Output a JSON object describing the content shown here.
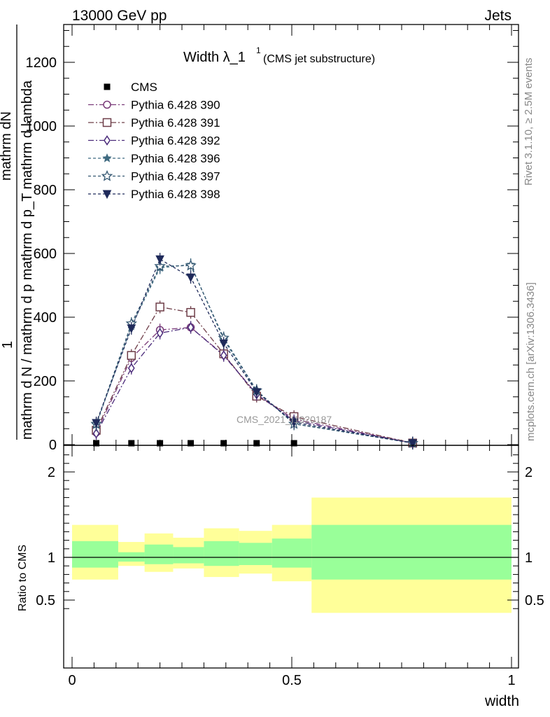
{
  "header": {
    "left": "13000 GeV pp",
    "right": "Jets"
  },
  "side_text": {
    "rivet": "Rivet 3.1.10, ≥ 2.5M events",
    "mcplots": "mcplots.cern.ch [arXiv:1306.3436]"
  },
  "watermark": "CMS_2021_I1920187",
  "colors": {
    "p390": "#7a3b79",
    "p391": "#6e3d48",
    "p392": "#4a2a7a",
    "p396": "#3f6a80",
    "p397": "#355872",
    "p398": "#1f2a5a",
    "band_green": "#99ff99",
    "band_yellow": "#ffff99"
  },
  "chart_data": [
    {
      "type": "line",
      "title": "Width λ_1",
      "title_sup": "1",
      "title_note": "(CMS jet substructure)",
      "ylabel_numerator": "mathrm dN",
      "ylabel_lines": [
        "1",
        "mathrm d N / mathrm d p mathrm d p_T mathrm d lambda"
      ],
      "xlim": [
        0,
        1
      ],
      "ylim": [
        0,
        1320
      ],
      "y_ticks": [
        0,
        200,
        400,
        600,
        800,
        1000,
        1200
      ],
      "y_tick_labels": [
        "0",
        "200",
        "400",
        "600",
        "800",
        "1000",
        "1200"
      ],
      "legend_position": "top-left",
      "data_series": {
        "name": "CMS",
        "x": [
          0.055,
          0.135,
          0.2,
          0.27,
          0.345,
          0.42,
          0.505
        ],
        "y": [
          0,
          0,
          0,
          0,
          0,
          0,
          0
        ]
      },
      "series": [
        {
          "name": "Pythia 6.428 390",
          "marker": "circle",
          "dash": "8,3,2,3",
          "color_key": "p390",
          "x": [
            0.055,
            0.135,
            0.2,
            0.27,
            0.345,
            0.42,
            0.505,
            0.775
          ],
          "y": [
            38,
            272,
            360,
            368,
            282,
            158,
            80,
            5
          ]
        },
        {
          "name": "Pythia 6.428 391",
          "marker": "square",
          "dash": "8,3,2,3",
          "color_key": "p391",
          "x": [
            0.055,
            0.135,
            0.2,
            0.27,
            0.345,
            0.42,
            0.505,
            0.775
          ],
          "y": [
            45,
            280,
            432,
            415,
            285,
            152,
            88,
            5
          ]
        },
        {
          "name": "Pythia 6.428 392",
          "marker": "diamond",
          "dash": "8,3,2,3",
          "color_key": "p392",
          "x": [
            0.055,
            0.135,
            0.2,
            0.27,
            0.345,
            0.42,
            0.505,
            0.775
          ],
          "y": [
            35,
            240,
            350,
            368,
            280,
            158,
            75,
            5
          ]
        },
        {
          "name": "Pythia 6.428 396",
          "marker": "star",
          "dash": "4,3",
          "color_key": "p396",
          "x": [
            0.055,
            0.135,
            0.2,
            0.27,
            0.345,
            0.42,
            0.505,
            0.775
          ],
          "y": [
            62,
            372,
            555,
            565,
            330,
            168,
            66,
            5
          ]
        },
        {
          "name": "Pythia 6.428 397",
          "marker": "star-open",
          "dash": "4,3",
          "color_key": "p397",
          "x": [
            0.055,
            0.135,
            0.2,
            0.27,
            0.345,
            0.42,
            0.505,
            0.775
          ],
          "y": [
            65,
            380,
            560,
            562,
            335,
            170,
            65,
            5
          ]
        },
        {
          "name": "Pythia 6.428 398",
          "marker": "triangle-down",
          "dash": "4,3",
          "color_key": "p398",
          "x": [
            0.055,
            0.135,
            0.2,
            0.27,
            0.345,
            0.42,
            0.505,
            0.775
          ],
          "y": [
            68,
            365,
            582,
            525,
            318,
            165,
            70,
            5
          ]
        }
      ]
    },
    {
      "type": "area",
      "ylabel": "Ratio to CMS",
      "xlabel": "width",
      "xlim": [
        0,
        1
      ],
      "ylim": [
        0.35,
        2.3
      ],
      "y_ticks": [
        0.5,
        1,
        2
      ],
      "y_tick_labels": [
        "0.5",
        "1",
        "2"
      ],
      "x_ticks": [
        0,
        0.5,
        1
      ],
      "x_tick_labels": [
        "0",
        "0.5",
        "1"
      ],
      "reference_line": 1,
      "bands": [
        {
          "x0": 0.0,
          "x1": 0.105,
          "green": [
            0.88,
            1.19
          ],
          "yellow": [
            0.74,
            1.38
          ]
        },
        {
          "x0": 0.105,
          "x1": 0.165,
          "green": [
            0.95,
            1.06
          ],
          "yellow": [
            0.9,
            1.18
          ]
        },
        {
          "x0": 0.165,
          "x1": 0.23,
          "green": [
            0.92,
            1.15
          ],
          "yellow": [
            0.83,
            1.28
          ]
        },
        {
          "x0": 0.23,
          "x1": 0.3,
          "green": [
            0.93,
            1.12
          ],
          "yellow": [
            0.87,
            1.23
          ]
        },
        {
          "x0": 0.3,
          "x1": 0.38,
          "green": [
            0.9,
            1.19
          ],
          "yellow": [
            0.77,
            1.34
          ]
        },
        {
          "x0": 0.38,
          "x1": 0.455,
          "green": [
            0.91,
            1.17
          ],
          "yellow": [
            0.81,
            1.31
          ]
        },
        {
          "x0": 0.455,
          "x1": 0.545,
          "green": [
            0.88,
            1.22
          ],
          "yellow": [
            0.72,
            1.38
          ]
        },
        {
          "x0": 0.545,
          "x1": 1.0,
          "green": [
            0.74,
            1.38
          ],
          "yellow": [
            0.35,
            1.7
          ]
        }
      ]
    }
  ]
}
